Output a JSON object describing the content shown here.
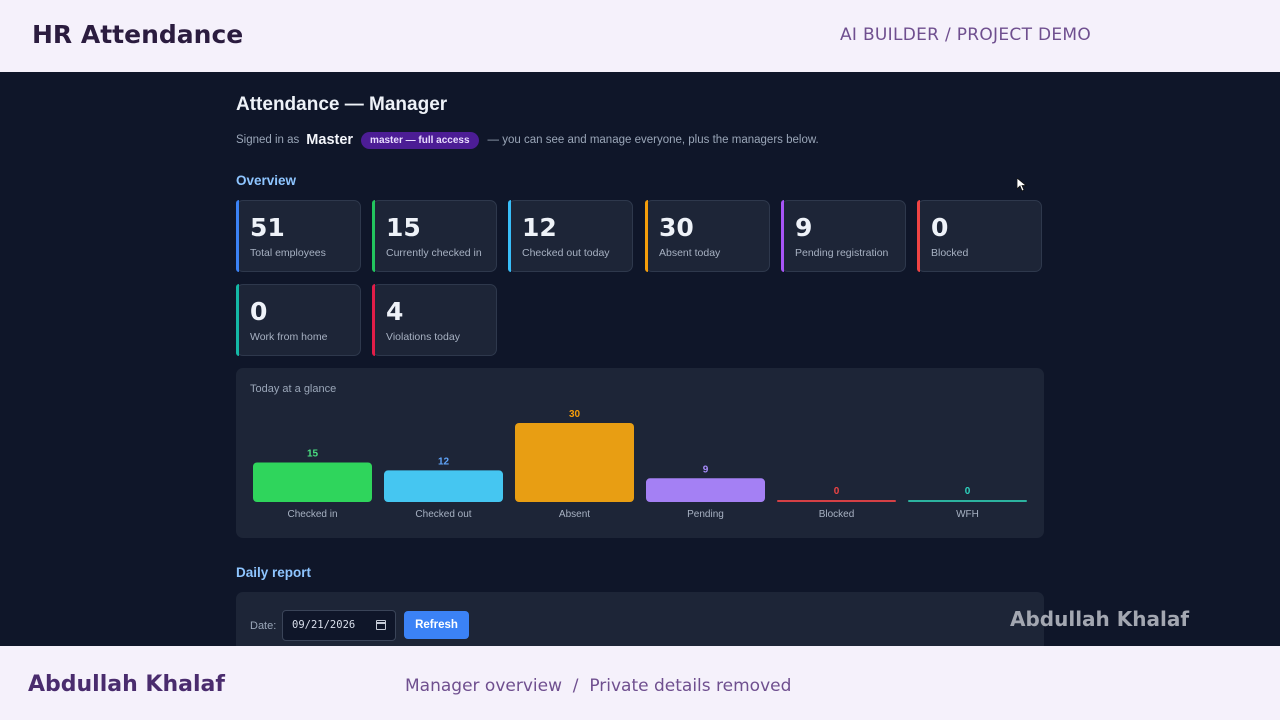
{
  "header": {
    "brand": "HR Attendance",
    "crumb": "AI BUILDER / PROJECT DEMO"
  },
  "page": {
    "title": "Attendance — Manager",
    "signed_prefix": "Signed in as",
    "user": "Master",
    "role_badge": "master — full access",
    "signed_suffix": "— you can see and manage everyone, plus the managers below."
  },
  "overview": {
    "title": "Overview",
    "cards": [
      {
        "value": "51",
        "label": "Total employees",
        "accent": "#3b82f6"
      },
      {
        "value": "15",
        "label": "Currently checked in",
        "accent": "#22c55e"
      },
      {
        "value": "12",
        "label": "Checked out today",
        "accent": "#38bdf8"
      },
      {
        "value": "30",
        "label": "Absent today",
        "accent": "#f59e0b"
      },
      {
        "value": "9",
        "label": "Pending registration",
        "accent": "#a855f7"
      },
      {
        "value": "0",
        "label": "Blocked",
        "accent": "#ef4444"
      },
      {
        "value": "0",
        "label": "Work from home",
        "accent": "#14b8a6"
      },
      {
        "value": "4",
        "label": "Violations today",
        "accent": "#e11d48"
      }
    ]
  },
  "glance": {
    "title": "Today at a glance"
  },
  "chart_data": {
    "type": "bar",
    "categories": [
      "Checked in",
      "Checked out",
      "Absent",
      "Pending",
      "Blocked",
      "WFH"
    ],
    "values": [
      15,
      12,
      30,
      9,
      0,
      0
    ],
    "colors": [
      "#2fd55c",
      "#45c6f1",
      "#e89e13",
      "#a480f4",
      "#d54045",
      "#2cb39f"
    ],
    "label_colors": [
      "#4ade80",
      "#60a5fa",
      "#f59e0b",
      "#a78bfa",
      "#ef4444",
      "#2dd4bf"
    ]
  },
  "report": {
    "title": "Daily report",
    "date_label": "Date:",
    "date_value": "09/21/2026",
    "refresh_label": "Refresh"
  },
  "watermark": "Abdullah Khalaf",
  "footer": {
    "name": "Abdullah Khalaf",
    "caption": "Manager overview  /  Private details removed"
  }
}
